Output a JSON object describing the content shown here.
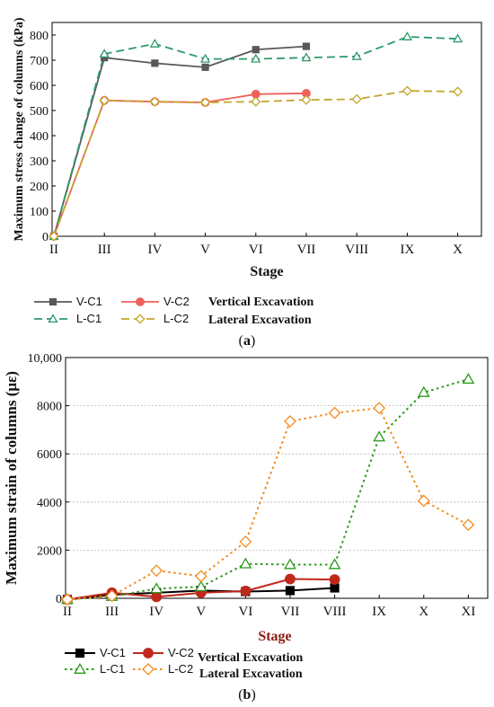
{
  "chart_data": [
    {
      "type": "line",
      "panel_label": "(a)",
      "panel_letter": "a",
      "xlabel": "Stage",
      "ylabel": "Maximum stress change of columns (kPa)",
      "categories": [
        "II",
        "III",
        "IV",
        "V",
        "VI",
        "VII",
        "VIII",
        "IX",
        "X"
      ],
      "ylim": [
        0,
        850
      ],
      "yticks": [
        0,
        100,
        200,
        300,
        400,
        500,
        600,
        700,
        800
      ],
      "grid": false,
      "legend_position": "bottom",
      "series": [
        {
          "name": "V-C1",
          "values": [
            0,
            710,
            688,
            672,
            742,
            755,
            null,
            null,
            null
          ],
          "color": "#595959",
          "style": "solid",
          "marker": "square-filled"
        },
        {
          "name": "V-C2",
          "values": [
            0,
            540,
            535,
            532,
            565,
            568,
            null,
            null,
            null
          ],
          "color": "#f0605a",
          "style": "solid",
          "marker": "circle-filled"
        },
        {
          "name": "L-C1",
          "values": [
            0,
            725,
            765,
            705,
            705,
            710,
            715,
            793,
            785
          ],
          "color": "#2e9a6c",
          "style": "dashed",
          "marker": "triangle-open"
        },
        {
          "name": "L-C2",
          "values": [
            0,
            540,
            535,
            532,
            535,
            542,
            545,
            578,
            575
          ],
          "color": "#c4a52a",
          "style": "dashed",
          "marker": "diamond-open"
        }
      ],
      "legend_group_labels": [
        "Vertical Excavation",
        "Lateral Excavation"
      ]
    },
    {
      "type": "line",
      "panel_label": "(b)",
      "panel_letter": "b",
      "xlabel": "Stage",
      "ylabel": "Maximum strain of columns (με)",
      "categories": [
        "II",
        "III",
        "IV",
        "V",
        "VI",
        "VII",
        "VIII",
        "IX",
        "X",
        "XI"
      ],
      "ylim": [
        0,
        10000
      ],
      "yticks": [
        0,
        2000,
        4000,
        6000,
        8000,
        10000
      ],
      "ytick_labels": [
        "0",
        "2000",
        "4000",
        "6000",
        "8000",
        "10,000"
      ],
      "grid": true,
      "legend_position": "bottom",
      "series": [
        {
          "name": "V-C1",
          "values": [
            -50,
            150,
            230,
            320,
            280,
            320,
            430,
            null,
            null,
            null
          ],
          "color": "#000000",
          "style": "solid",
          "marker": "square-filled"
        },
        {
          "name": "V-C2",
          "values": [
            -50,
            230,
            60,
            230,
            300,
            800,
            780,
            null,
            null,
            null
          ],
          "color": "#c0281c",
          "style": "solid",
          "marker": "circle-filled"
        },
        {
          "name": "L-C1",
          "values": [
            -50,
            80,
            400,
            480,
            1430,
            1400,
            1400,
            6700,
            8550,
            9100
          ],
          "color": "#2a9a1a",
          "style": "dotted",
          "marker": "triangle-open"
        },
        {
          "name": "L-C2",
          "values": [
            -50,
            100,
            1150,
            920,
            2350,
            7350,
            7700,
            7900,
            4050,
            3050
          ],
          "color": "#f58b1f",
          "style": "dotted",
          "marker": "diamond-open"
        }
      ],
      "legend_group_labels": [
        "Vertical Excavation",
        "Lateral Excavation"
      ]
    }
  ]
}
